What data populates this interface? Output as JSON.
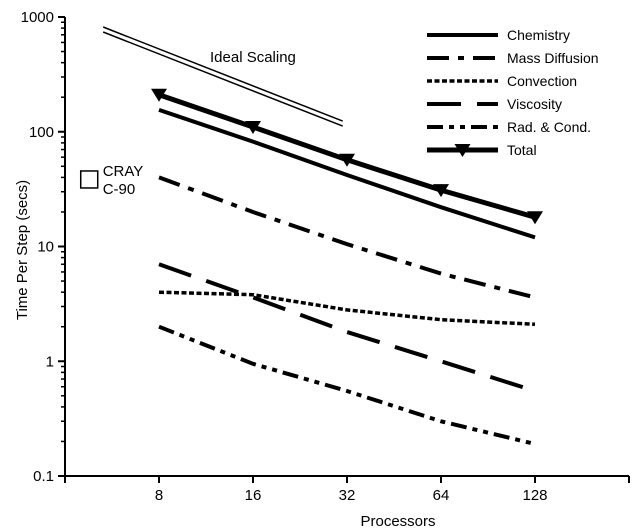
{
  "chart_data": {
    "type": "line",
    "xlabel": "Processors",
    "ylabel": "Time Per Step (secs)",
    "x_scale": "log2",
    "y_scale": "log10",
    "xlim": [
      4,
      256
    ],
    "ylim": [
      0.1,
      1000
    ],
    "x_ticks": [
      8,
      16,
      32,
      64,
      128
    ],
    "y_ticks": [
      0.1,
      1,
      10,
      100,
      1000
    ],
    "x_tick_labels": [
      "8",
      "16",
      "32",
      "64",
      "128"
    ],
    "y_tick_labels": [
      "0.1",
      "1",
      "10",
      "100",
      "1000"
    ],
    "grid": false,
    "legend_position": "top-right",
    "series": [
      {
        "name": "Chemistry",
        "style": "solid",
        "marker": "",
        "x": [
          8,
          16,
          32,
          64,
          128
        ],
        "y": [
          155,
          82,
          42,
          22,
          12
        ]
      },
      {
        "name": "Mass Diffusion",
        "style": "dashdot",
        "marker": "",
        "x": [
          8,
          16,
          32,
          64,
          128
        ],
        "y": [
          40,
          20,
          10.5,
          5.8,
          3.6
        ]
      },
      {
        "name": "Convection",
        "style": "dotted",
        "marker": "",
        "x": [
          8,
          16,
          32,
          64,
          128
        ],
        "y": [
          4.0,
          3.8,
          2.8,
          2.3,
          2.1
        ]
      },
      {
        "name": "Viscosity",
        "style": "longdash",
        "marker": "",
        "x": [
          8,
          16,
          32,
          64,
          128
        ],
        "y": [
          7.0,
          3.6,
          1.8,
          1.0,
          0.55
        ]
      },
      {
        "name": "Rad. & Cond.",
        "style": "dashdotdot",
        "marker": "",
        "x": [
          8,
          16,
          32,
          64,
          128
        ],
        "y": [
          2.0,
          0.95,
          0.55,
          0.3,
          0.19
        ]
      },
      {
        "name": "Total",
        "style": "solid-thick",
        "marker": "triangle-down",
        "x": [
          8,
          16,
          32,
          64,
          128
        ],
        "y": [
          210,
          110,
          57,
          31,
          18
        ]
      }
    ],
    "annotations": [
      {
        "id": "ideal",
        "text": "Ideal Scaling",
        "x": [
          5.3,
          31
        ],
        "y": [
          740,
          112
        ]
      },
      {
        "id": "cray",
        "lines": [
          "CRAY",
          "C-90"
        ],
        "x": 4.8,
        "y": 38,
        "marker": "square"
      }
    ]
  }
}
